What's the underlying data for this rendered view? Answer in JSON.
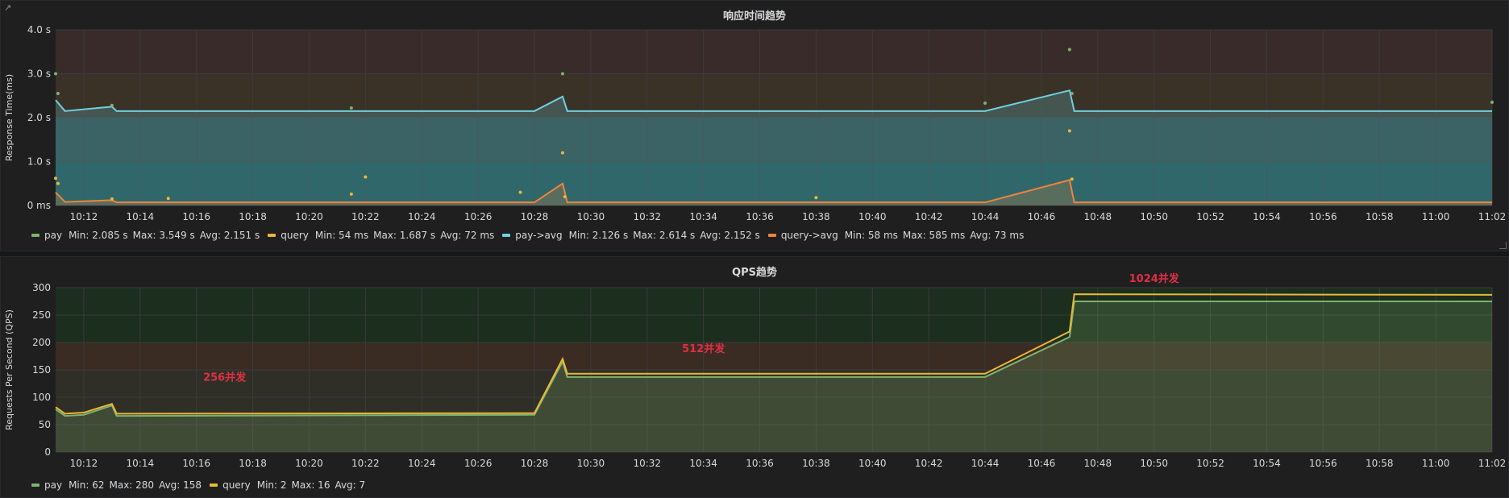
{
  "panels": [
    {
      "title": "响应时间趋势",
      "legend": [
        {
          "name": "pay",
          "color": "#7eb26d",
          "stats": [
            "Min: 2.085 s",
            "Max: 3.549 s",
            "Avg: 2.151 s"
          ]
        },
        {
          "name": "query",
          "color": "#eab839",
          "stats": [
            "Min: 54 ms",
            "Max: 1.687 s",
            "Avg: 72 ms"
          ]
        },
        {
          "name": "pay->avg",
          "color": "#6ed0e0",
          "stats": [
            "Min: 2.126 s",
            "Max: 2.614 s",
            "Avg: 2.152 s"
          ]
        },
        {
          "name": "query->avg",
          "color": "#ef843c",
          "stats": [
            "Min: 58 ms",
            "Max: 585 ms",
            "Avg: 73 ms"
          ]
        }
      ]
    },
    {
      "title": "QPS趋势",
      "legend": [
        {
          "name": "pay",
          "color": "#7eb26d",
          "stats": [
            "Min: 62",
            "Max: 280",
            "Avg: 158"
          ]
        },
        {
          "name": "query",
          "color": "#eab839",
          "stats": [
            "Min: 2",
            "Max: 16",
            "Avg: 7"
          ]
        }
      ]
    }
  ],
  "chart_data": [
    {
      "type": "line",
      "title": "响应时间趋势",
      "ylabel": "Response Time(ms)",
      "xlabel": "",
      "x_ticks": [
        "10:12",
        "10:14",
        "10:16",
        "10:18",
        "10:20",
        "10:22",
        "10:24",
        "10:26",
        "10:28",
        "10:30",
        "10:32",
        "10:34",
        "10:36",
        "10:38",
        "10:40",
        "10:42",
        "10:44",
        "10:46",
        "10:48",
        "10:50",
        "10:52",
        "10:54",
        "10:56",
        "10:58",
        "11:00",
        "11:02"
      ],
      "y_ticks": [
        "0 ms",
        "1.0 s",
        "2.0 s",
        "3.0 s",
        "4.0 s"
      ],
      "xlim": [
        "10:11",
        "11:02"
      ],
      "ylim": [
        0,
        4.0
      ],
      "threshold_bands": [
        {
          "from": 0,
          "to": 1.0,
          "color": "#1f4a4a"
        },
        {
          "from": 1.0,
          "to": 2.0,
          "color": "#2e4342"
        },
        {
          "from": 2.0,
          "to": 3.0,
          "color": "#3a3227"
        },
        {
          "from": 3.0,
          "to": 4.0,
          "color": "#3a2b2b"
        }
      ],
      "series": [
        {
          "name": "pay->avg",
          "color": "#6ed0e0",
          "fill": true,
          "x": [
            "10:11",
            "10:11:20",
            "10:13",
            "10:13:10",
            "10:28",
            "10:29",
            "10:29:10",
            "10:44",
            "10:47",
            "10:47:10",
            "11:02"
          ],
          "y": [
            2.4,
            2.15,
            2.25,
            2.15,
            2.15,
            2.48,
            2.15,
            2.15,
            2.62,
            2.15,
            2.15
          ]
        },
        {
          "name": "query->avg",
          "color": "#ef843c",
          "fill": true,
          "x": [
            "10:11",
            "10:11:20",
            "10:13",
            "10:13:10",
            "10:28",
            "10:29",
            "10:29:10",
            "10:44",
            "10:47",
            "10:47:10",
            "11:02"
          ],
          "y": [
            0.3,
            0.08,
            0.12,
            0.07,
            0.07,
            0.5,
            0.07,
            0.07,
            0.58,
            0.07,
            0.07
          ]
        },
        {
          "name": "pay",
          "color": "#7eb26d",
          "type": "scatter",
          "x": [
            "10:11",
            "10:11:05",
            "10:13",
            "10:21:30",
            "10:29",
            "10:44",
            "10:47",
            "10:47:05",
            "11:02"
          ],
          "y": [
            3.0,
            2.55,
            2.28,
            2.22,
            3.0,
            2.33,
            3.55,
            2.55,
            2.35
          ]
        },
        {
          "name": "query",
          "color": "#eab839",
          "type": "scatter",
          "x": [
            "10:11",
            "10:11:05",
            "10:13",
            "10:15",
            "10:21:30",
            "10:22",
            "10:27:30",
            "10:29",
            "10:29:05",
            "10:38",
            "10:47",
            "10:47:05"
          ],
          "y": [
            0.62,
            0.5,
            0.15,
            0.16,
            0.26,
            0.65,
            0.3,
            1.2,
            0.2,
            0.18,
            1.7,
            0.6
          ]
        }
      ]
    },
    {
      "type": "line",
      "title": "QPS趋势",
      "ylabel": "Requests Per Second (QPS)",
      "xlabel": "",
      "x_ticks": [
        "10:12",
        "10:14",
        "10:16",
        "10:18",
        "10:20",
        "10:22",
        "10:24",
        "10:26",
        "10:28",
        "10:30",
        "10:32",
        "10:34",
        "10:36",
        "10:38",
        "10:40",
        "10:42",
        "10:44",
        "10:46",
        "10:48",
        "10:50",
        "10:52",
        "10:54",
        "10:56",
        "10:58",
        "11:00",
        "11:02"
      ],
      "y_ticks": [
        "0",
        "50",
        "100",
        "150",
        "200",
        "250",
        "300"
      ],
      "xlim": [
        "10:11",
        "11:02"
      ],
      "ylim": [
        0,
        300
      ],
      "threshold_bands": [
        {
          "from": 0,
          "to": 150,
          "color": "#2f2f27"
        },
        {
          "from": 150,
          "to": 200,
          "color": "#3a2b23"
        },
        {
          "from": 200,
          "to": 300,
          "color": "#1c2e1e"
        }
      ],
      "annotations": [
        {
          "text": "256并发",
          "x": "10:17",
          "y": 130,
          "color": "#e02f44"
        },
        {
          "text": "512并发",
          "x": "10:34",
          "y": 182,
          "color": "#e02f44"
        },
        {
          "text": "1024并发",
          "x": "10:50",
          "y": 310,
          "color": "#e02f44"
        }
      ],
      "series": [
        {
          "name": "pay",
          "color": "#7eb26d",
          "fill": true,
          "x": [
            "10:11",
            "10:11:20",
            "10:12",
            "10:13",
            "10:13:10",
            "10:28",
            "10:29",
            "10:29:10",
            "10:44",
            "10:47",
            "10:47:10",
            "11:02"
          ],
          "y": [
            78,
            66,
            68,
            85,
            66,
            68,
            165,
            137,
            137,
            210,
            275,
            275
          ]
        },
        {
          "name": "query",
          "color": "#eab839",
          "fill": false,
          "x": [
            "10:11",
            "10:11:20",
            "10:12",
            "10:13",
            "10:13:10",
            "10:28",
            "10:29",
            "10:29:10",
            "10:44",
            "10:47",
            "10:47:10",
            "11:02"
          ],
          "y": [
            82,
            70,
            72,
            88,
            70,
            71,
            170,
            143,
            143,
            220,
            288,
            287
          ]
        }
      ]
    }
  ]
}
